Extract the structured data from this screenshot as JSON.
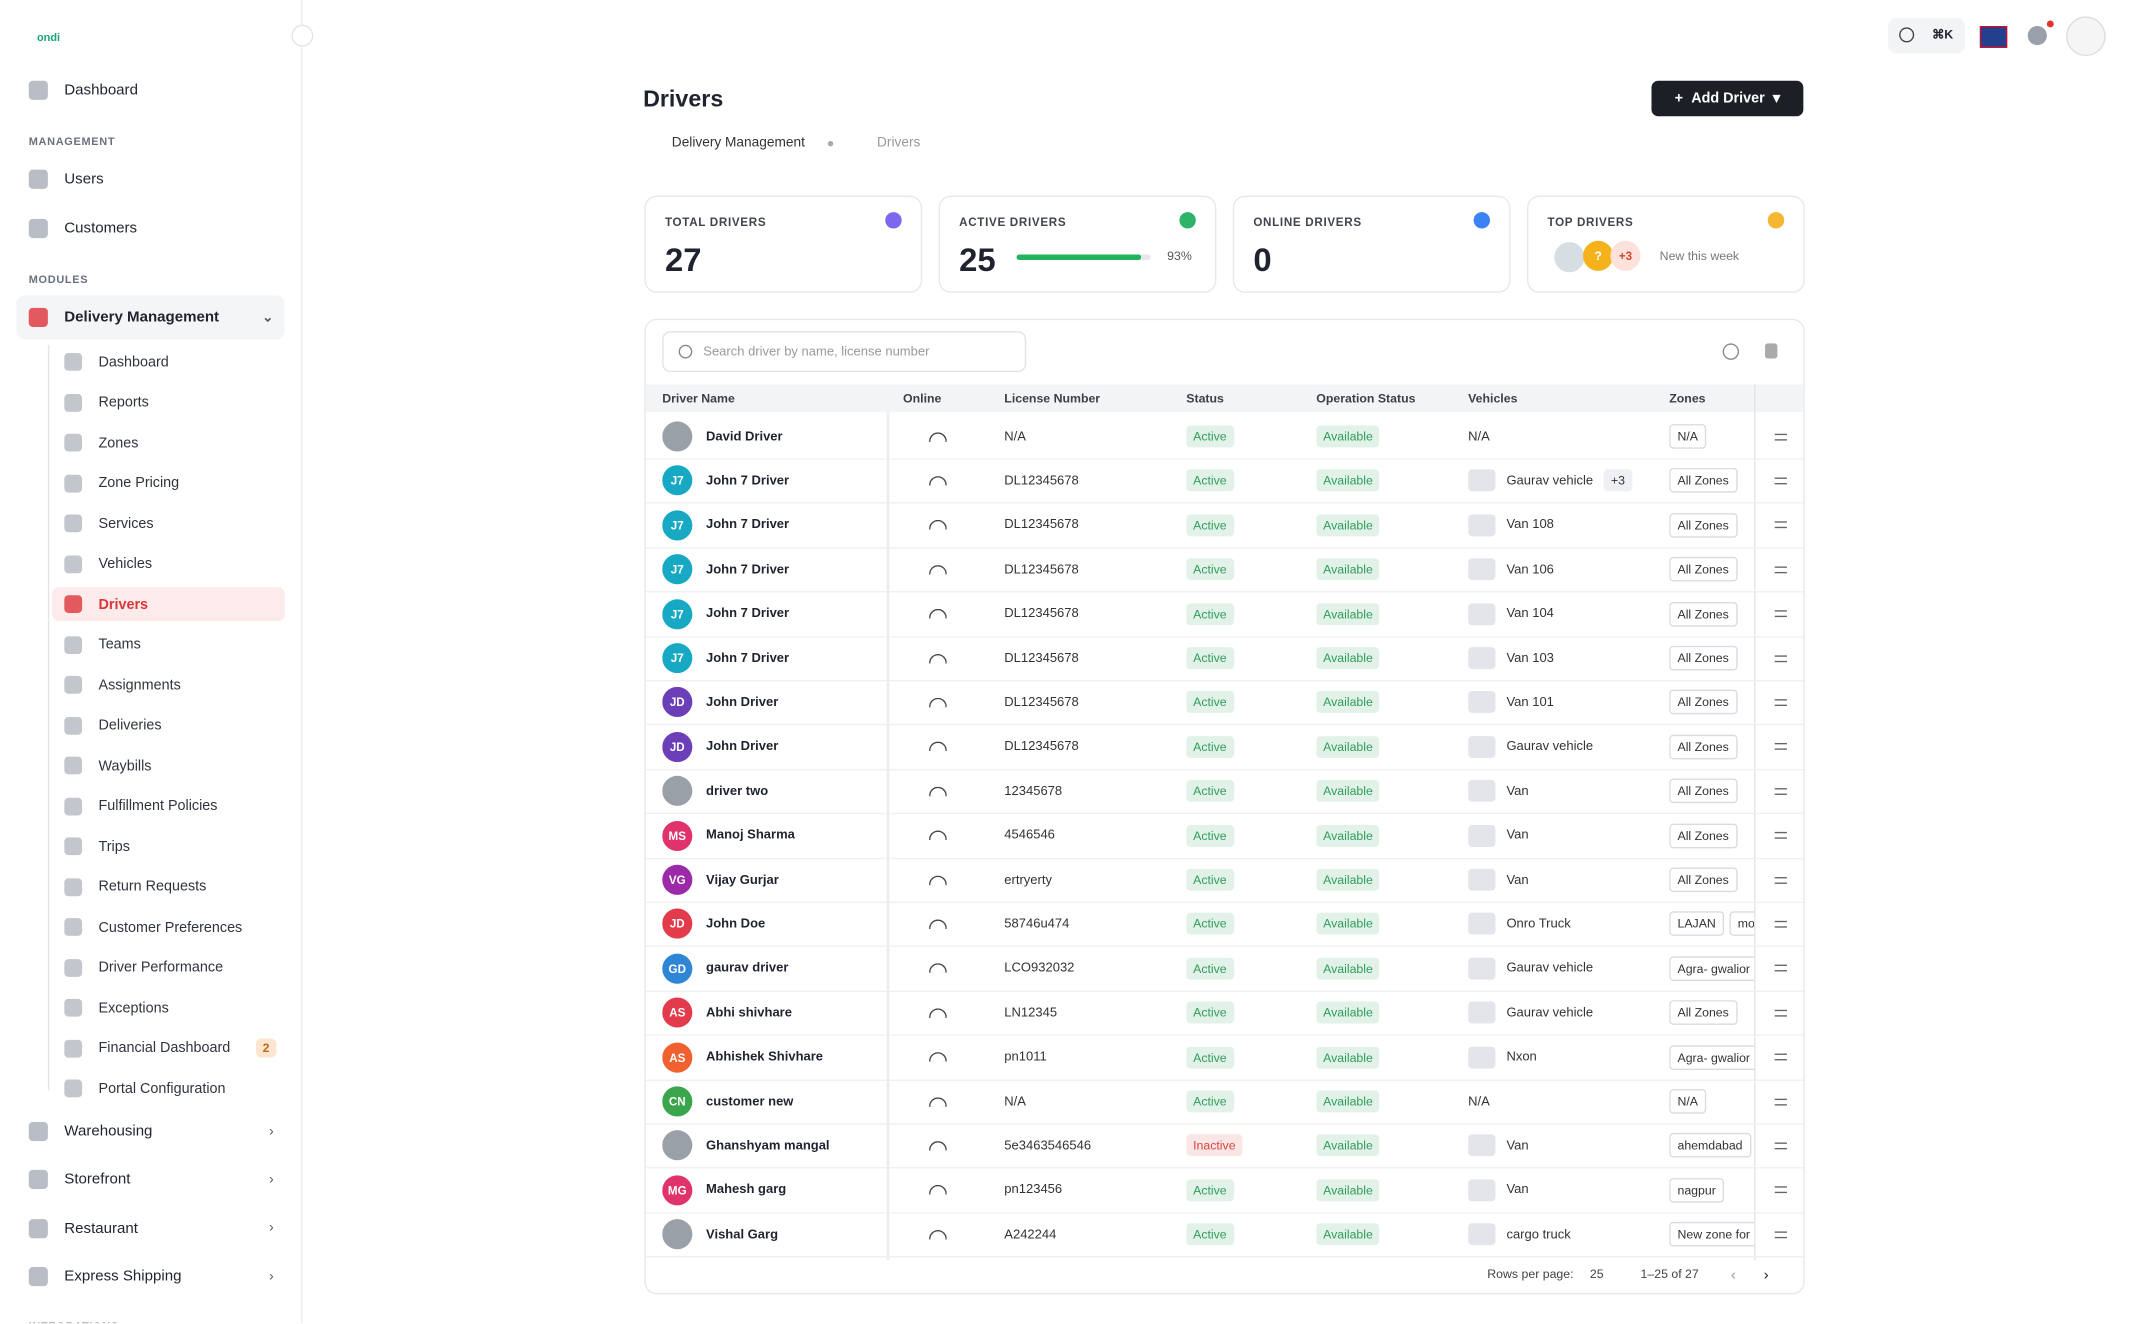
{
  "brand": "ondi",
  "nav": {
    "dashboard": "Dashboard",
    "management_label": "MANAGEMENT",
    "management": [
      "Users",
      "Customers"
    ],
    "modules_label": "MODULES",
    "delivery": "Delivery Management",
    "delivery_items": [
      {
        "label": "Dashboard"
      },
      {
        "label": "Reports"
      },
      {
        "label": "Zones"
      },
      {
        "label": "Zone Pricing"
      },
      {
        "label": "Services"
      },
      {
        "label": "Vehicles"
      },
      {
        "label": "Drivers",
        "active": true
      },
      {
        "label": "Teams"
      },
      {
        "label": "Assignments"
      },
      {
        "label": "Deliveries"
      },
      {
        "label": "Waybills"
      },
      {
        "label": "Fulfillment Policies"
      },
      {
        "label": "Trips"
      },
      {
        "label": "Return Requests"
      },
      {
        "label": "Customer Preferences"
      },
      {
        "label": "Driver Performance"
      },
      {
        "label": "Exceptions"
      },
      {
        "label": "Financial Dashboard",
        "badge": 2
      },
      {
        "label": "Portal Configuration"
      }
    ],
    "modules": [
      "Warehousing",
      "Storefront",
      "Restaurant",
      "Express Shipping"
    ],
    "integrations_label": "INTEGRATIONS"
  },
  "header": {
    "shortcut": "⌘K"
  },
  "page": {
    "title": "Drivers",
    "action": "Add Driver",
    "breadcrumb": [
      "Delivery Management",
      "Drivers"
    ]
  },
  "stats": [
    {
      "label": "TOTAL DRIVERS",
      "value": 27
    },
    {
      "label": "ACTIVE DRIVERS",
      "value": 25,
      "progress": 93,
      "progress_label": "93%"
    },
    {
      "label": "ONLINE DRIVERS",
      "value": 0
    },
    {
      "label": "TOP DRIVERS",
      "avatar": "?",
      "more": "+3",
      "note": "New this week"
    }
  ],
  "table": {
    "search_placeholder": "Search driver by name, license number",
    "columns": [
      "Driver Name",
      "Online",
      "License Number",
      "Status",
      "Operation Status",
      "Vehicles",
      "Zones"
    ],
    "status_colors": {
      "Active": "#2f9e5c",
      "Inactive": "#d9463f"
    },
    "rows": [
      {
        "name": "David Driver",
        "license": "N/A",
        "status": "Active",
        "operation": "Available",
        "vehicle": "N/A",
        "zones": [
          "N/A"
        ]
      },
      {
        "initials": "J7",
        "color": "#17a9c4",
        "name": "John 7 Driver",
        "license": "DL12345678",
        "status": "Active",
        "operation": "Available",
        "vehicle": "Gaurav vehicle",
        "vehicle_more": "+3",
        "zones": [
          "All Zones"
        ]
      },
      {
        "initials": "J7",
        "color": "#17a9c4",
        "name": "John 7 Driver",
        "license": "DL12345678",
        "status": "Active",
        "operation": "Available",
        "vehicle": "Van 108",
        "zones": [
          "All Zones"
        ]
      },
      {
        "initials": "J7",
        "color": "#17a9c4",
        "name": "John 7 Driver",
        "license": "DL12345678",
        "status": "Active",
        "operation": "Available",
        "vehicle": "Van 106",
        "zones": [
          "All Zones"
        ]
      },
      {
        "initials": "J7",
        "color": "#17a9c4",
        "name": "John 7 Driver",
        "license": "DL12345678",
        "status": "Active",
        "operation": "Available",
        "vehicle": "Van 104",
        "zones": [
          "All Zones"
        ]
      },
      {
        "initials": "J7",
        "color": "#17a9c4",
        "name": "John 7 Driver",
        "license": "DL12345678",
        "status": "Active",
        "operation": "Available",
        "vehicle": "Van 103",
        "zones": [
          "All Zones"
        ]
      },
      {
        "initials": "JD",
        "color": "#6b3fb8",
        "name": "John Driver",
        "license": "DL12345678",
        "status": "Active",
        "operation": "Available",
        "vehicle": "Van 101",
        "zones": [
          "All Zones"
        ]
      },
      {
        "initials": "JD",
        "color": "#6b3fb8",
        "name": "John Driver",
        "license": "DL12345678",
        "status": "Active",
        "operation": "Available",
        "vehicle": "Gaurav vehicle",
        "zones": [
          "All Zones"
        ]
      },
      {
        "name": "driver two",
        "license": "12345678",
        "status": "Active",
        "operation": "Available",
        "vehicle": "Van",
        "zones": [
          "All Zones"
        ]
      },
      {
        "initials": "MS",
        "color": "#e0336b",
        "name": "Manoj Sharma",
        "license": "4546546",
        "status": "Active",
        "operation": "Available",
        "vehicle": "Van",
        "zones": [
          "All Zones"
        ]
      },
      {
        "initials": "VG",
        "color": "#9c2aa8",
        "name": "Vijay Gurjar",
        "license": "ertryerty",
        "status": "Active",
        "operation": "Available",
        "vehicle": "Van",
        "zones": [
          "All Zones"
        ]
      },
      {
        "initials": "JD",
        "color": "#e23b4b",
        "name": "John Doe",
        "license": "58746u474",
        "status": "Active",
        "operation": "Available",
        "vehicle": "Onro Truck",
        "zones": [
          "LAJAN",
          "mo"
        ]
      },
      {
        "initials": "GD",
        "color": "#2f86d6",
        "name": "gaurav driver",
        "license": "LCO932032",
        "status": "Active",
        "operation": "Available",
        "vehicle": "Gaurav vehicle",
        "zones": [
          "Agra- gwalior"
        ]
      },
      {
        "initials": "AS",
        "color": "#e23b4b",
        "name": "Abhi shivhare",
        "license": "LN12345",
        "status": "Active",
        "operation": "Available",
        "vehicle": "Gaurav vehicle",
        "zones": [
          "All Zones"
        ]
      },
      {
        "initials": "AS",
        "color": "#f0612f",
        "name": "Abhishek Shivhare",
        "license": "pn1011",
        "status": "Active",
        "operation": "Available",
        "vehicle": "Nxon",
        "zones": [
          "Agra- gwalior"
        ]
      },
      {
        "initials": "CN",
        "color": "#3aa54a",
        "name": "customer new",
        "license": "N/A",
        "status": "Active",
        "operation": "Available",
        "vehicle": "N/A",
        "zones": [
          "N/A"
        ]
      },
      {
        "name": "Ghanshyam mangal",
        "license": "5e3463546546",
        "status": "Inactive",
        "operation": "Available",
        "vehicle": "Van",
        "zones": [
          "ahemdabad"
        ]
      },
      {
        "initials": "MG",
        "color": "#e0336b",
        "name": "Mahesh garg",
        "license": "pn123456",
        "status": "Active",
        "operation": "Available",
        "vehicle": "Van",
        "zones": [
          "nagpur"
        ]
      },
      {
        "name": "Vishal Garg",
        "license": "A242244",
        "status": "Active",
        "operation": "Available",
        "vehicle": "cargo truck",
        "zones": [
          "New zone for"
        ]
      }
    ],
    "rows_per_page_label": "Rows per page:",
    "rows_per_page": 25,
    "range_label": "1–25 of 27"
  }
}
